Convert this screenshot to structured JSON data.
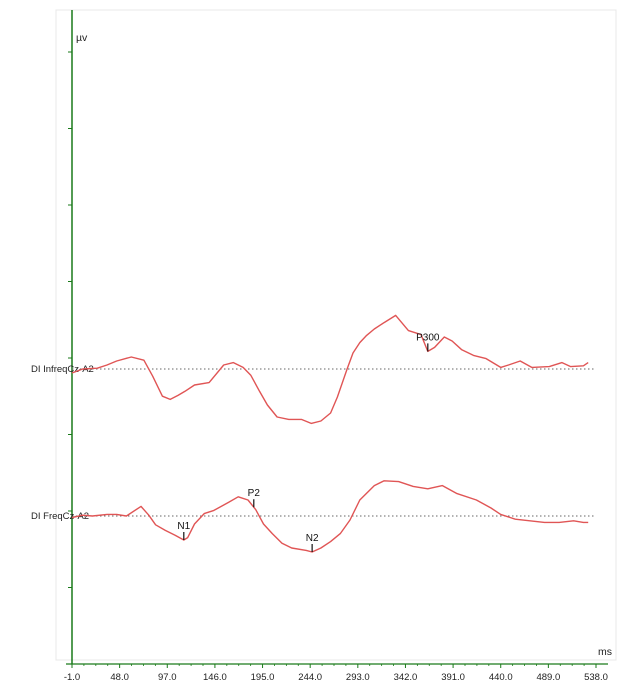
{
  "chart_data": {
    "type": "line",
    "y_unit": "µv",
    "x_unit": "ms",
    "x_ticks": [
      "-1.0",
      "48.0",
      "97.0",
      "146.0",
      "195.0",
      "244.0",
      "293.0",
      "342.0",
      "391.0",
      "440.0",
      "489.0",
      "538.0"
    ],
    "xlim": [
      -1,
      538
    ],
    "grid": false,
    "colors": {
      "axis": "#1a7a1a",
      "trace": "#e05555",
      "baseline": "#666666",
      "frame": "#e8e8e8"
    },
    "series": [
      {
        "name": "DI InfreqCz-A2",
        "baseline_y": 0,
        "x": [
          -1,
          10,
          25,
          35,
          45,
          60,
          73,
          82,
          92,
          100,
          108,
          115,
          125,
          140,
          155,
          165,
          175,
          183,
          192,
          200,
          210,
          222,
          235,
          245,
          255,
          265,
          272,
          282,
          288,
          295,
          302,
          310,
          320,
          332,
          345,
          358,
          365,
          372,
          382,
          390,
          400,
          412,
          425,
          440,
          448,
          460,
          472,
          490,
          503,
          512,
          525,
          530
        ],
        "y": [
          -0.5,
          0.0,
          0.1,
          0.5,
          1.0,
          1.5,
          1.1,
          -0.9,
          -3.4,
          -3.8,
          -3.3,
          -2.8,
          -2.0,
          -1.7,
          0.5,
          0.8,
          0.2,
          -0.8,
          -2.8,
          -4.5,
          -6.0,
          -6.3,
          -6.3,
          -6.8,
          -6.5,
          -5.5,
          -3.5,
          0.0,
          2.0,
          3.3,
          4.2,
          5.0,
          5.8,
          6.7,
          4.8,
          4.3,
          2.2,
          2.7,
          4.0,
          3.5,
          2.4,
          1.7,
          1.3,
          0.2,
          0.5,
          1.0,
          0.2,
          0.3,
          0.8,
          0.3,
          0.4,
          0.8
        ]
      },
      {
        "name": "DI FreqCz-A2",
        "baseline_y": 0,
        "x": [
          -1,
          10,
          20,
          35,
          45,
          55,
          70,
          78,
          85,
          95,
          105,
          114,
          118,
          125,
          135,
          145,
          160,
          170,
          180,
          188,
          196,
          205,
          215,
          225,
          240,
          246,
          255,
          265,
          275,
          285,
          295,
          310,
          320,
          335,
          350,
          365,
          380,
          395,
          415,
          430,
          440,
          455,
          470,
          485,
          500,
          515,
          525,
          530
        ],
        "y": [
          -0.2,
          0.1,
          0.0,
          0.2,
          0.2,
          0.0,
          1.2,
          0.1,
          -1.1,
          -1.8,
          -2.4,
          -3.0,
          -2.7,
          -1.0,
          0.3,
          0.7,
          1.7,
          2.4,
          2.0,
          0.8,
          -1.0,
          -2.2,
          -3.4,
          -4.0,
          -4.3,
          -4.5,
          -4.0,
          -3.2,
          -2.2,
          -0.5,
          2.0,
          3.8,
          4.4,
          4.3,
          3.7,
          3.4,
          3.8,
          2.8,
          2.0,
          1.0,
          0.2,
          -0.4,
          -0.6,
          -0.8,
          -0.8,
          -0.6,
          -0.8,
          -0.8
        ]
      }
    ],
    "peaks": [
      {
        "label": "P300",
        "series": 0,
        "x": 365,
        "position": "above"
      },
      {
        "label": "N1",
        "series": 1,
        "x": 114,
        "position": "above"
      },
      {
        "label": "P2",
        "series": 1,
        "x": 186,
        "position": "above"
      },
      {
        "label": "N2",
        "series": 1,
        "x": 246,
        "position": "above"
      }
    ]
  }
}
